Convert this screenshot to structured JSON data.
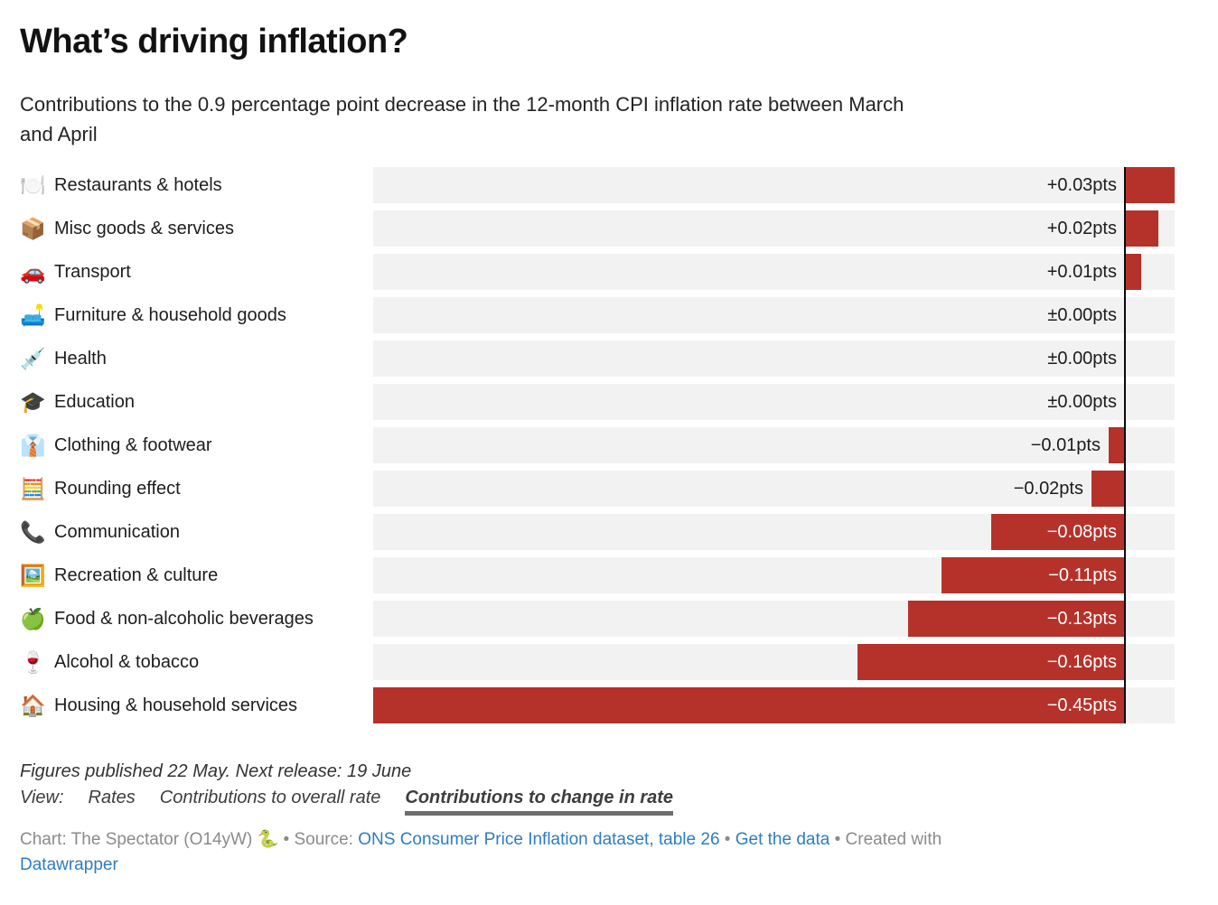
{
  "header": {
    "title": "What’s driving inflation?",
    "subtitle_lines": [
      "Contributions to the 0.9 percentage point decrease in the 12-month CPI inflation rate between March",
      "and April"
    ]
  },
  "chart_data": {
    "type": "bar",
    "orientation": "horizontal",
    "title": "What’s driving inflation?",
    "subtitle": "Contributions to the 0.9 percentage point decrease in the 12-month CPI inflation rate between March and April",
    "unit": "pts",
    "xlim": [
      -0.45,
      0.03
    ],
    "baseline_value": 0,
    "grid": false,
    "legend": "none",
    "bar_color": "#b5322a",
    "track_color": "#f2f2f2",
    "baseline_color": "#0a0a0a",
    "categories": [
      "Restaurants & hotels",
      "Misc goods & services",
      "Transport",
      "Furniture & household goods",
      "Health",
      "Education",
      "Clothing & footwear",
      "Rounding effect",
      "Communication",
      "Recreation & culture",
      "Food & non-alcoholic beverages",
      "Alcohol & tobacco",
      "Housing & household services"
    ],
    "icons": [
      "🍽️",
      "📦",
      "🚗",
      "🛋️",
      "💉",
      "🎓",
      "👔",
      "🧮",
      "📞",
      "🖼️",
      "🍏",
      "🍷",
      "🏠"
    ],
    "icon_names": [
      "fork-knife-plate-icon",
      "package-icon",
      "car-icon",
      "couch-lamp-icon",
      "syringe-icon",
      "graduation-cap-icon",
      "necktie-icon",
      "abacus-icon",
      "telephone-icon",
      "framed-picture-icon",
      "green-apple-icon",
      "wine-glass-icon",
      "house-icon"
    ],
    "values": [
      0.03,
      0.02,
      0.01,
      0,
      0,
      0,
      -0.01,
      -0.02,
      -0.08,
      -0.11,
      -0.13,
      -0.16,
      -0.45
    ],
    "value_labels": [
      "+0.03pts",
      "+0.02pts",
      "+0.01pts",
      "±0.00pts",
      "±0.00pts",
      "±0.00pts",
      "−0.01pts",
      "−0.02pts",
      "−0.08pts",
      "−0.11pts",
      "−0.13pts",
      "−0.16pts",
      "−0.45pts"
    ],
    "label_inside": [
      false,
      false,
      false,
      false,
      false,
      false,
      false,
      false,
      true,
      true,
      true,
      true,
      true
    ]
  },
  "footer": {
    "note": "Figures published 22 May. Next release: 19 June",
    "view_label": "View:",
    "views": [
      {
        "label": "Rates",
        "active": false
      },
      {
        "label": "Contributions to overall rate",
        "active": false
      },
      {
        "label": "Contributions to change in rate",
        "active": true
      }
    ],
    "byline": {
      "chart_credit": "Chart: The Spectator (O14yW)",
      "snake_emoji": "🐍",
      "bullet": "•",
      "source_label": "Source:",
      "source_link": "ONS Consumer Price Inflation dataset, table 26",
      "get_data_link": "Get the data",
      "created_with": "Created with",
      "datawrapper_link": "Datawrapper"
    }
  }
}
